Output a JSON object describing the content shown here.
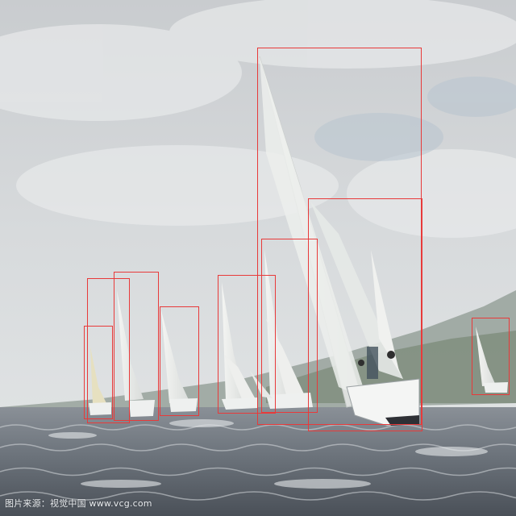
{
  "photo": {
    "subject": "sailboats",
    "annotation_color": "#e83a3a",
    "detection_boxes": [
      {
        "label": "sailboat-large-lead",
        "sail_color": "#f1f2f0"
      },
      {
        "label": "sailboat-large-hull",
        "sail_color": "#f1f2f0"
      },
      {
        "label": "sailboat-mid",
        "sail_color": "#eef0ee"
      },
      {
        "label": "sailboat-mid-left",
        "sail_color": "#eef0ee"
      },
      {
        "label": "sailboat-small-1",
        "sail_color": "#ecede6"
      },
      {
        "label": "sailboat-small-2",
        "sail_color": "#ecede6"
      },
      {
        "label": "sailboat-small-3",
        "sail_color": "#e9e4c8"
      },
      {
        "label": "sailboat-small-4",
        "sail_color": "#e9e4c8"
      },
      {
        "label": "sailboat-far-right",
        "sail_color": "#eceeee"
      }
    ]
  },
  "watermark": {
    "text": "图片来源：视觉中国 www.vcg.com"
  }
}
